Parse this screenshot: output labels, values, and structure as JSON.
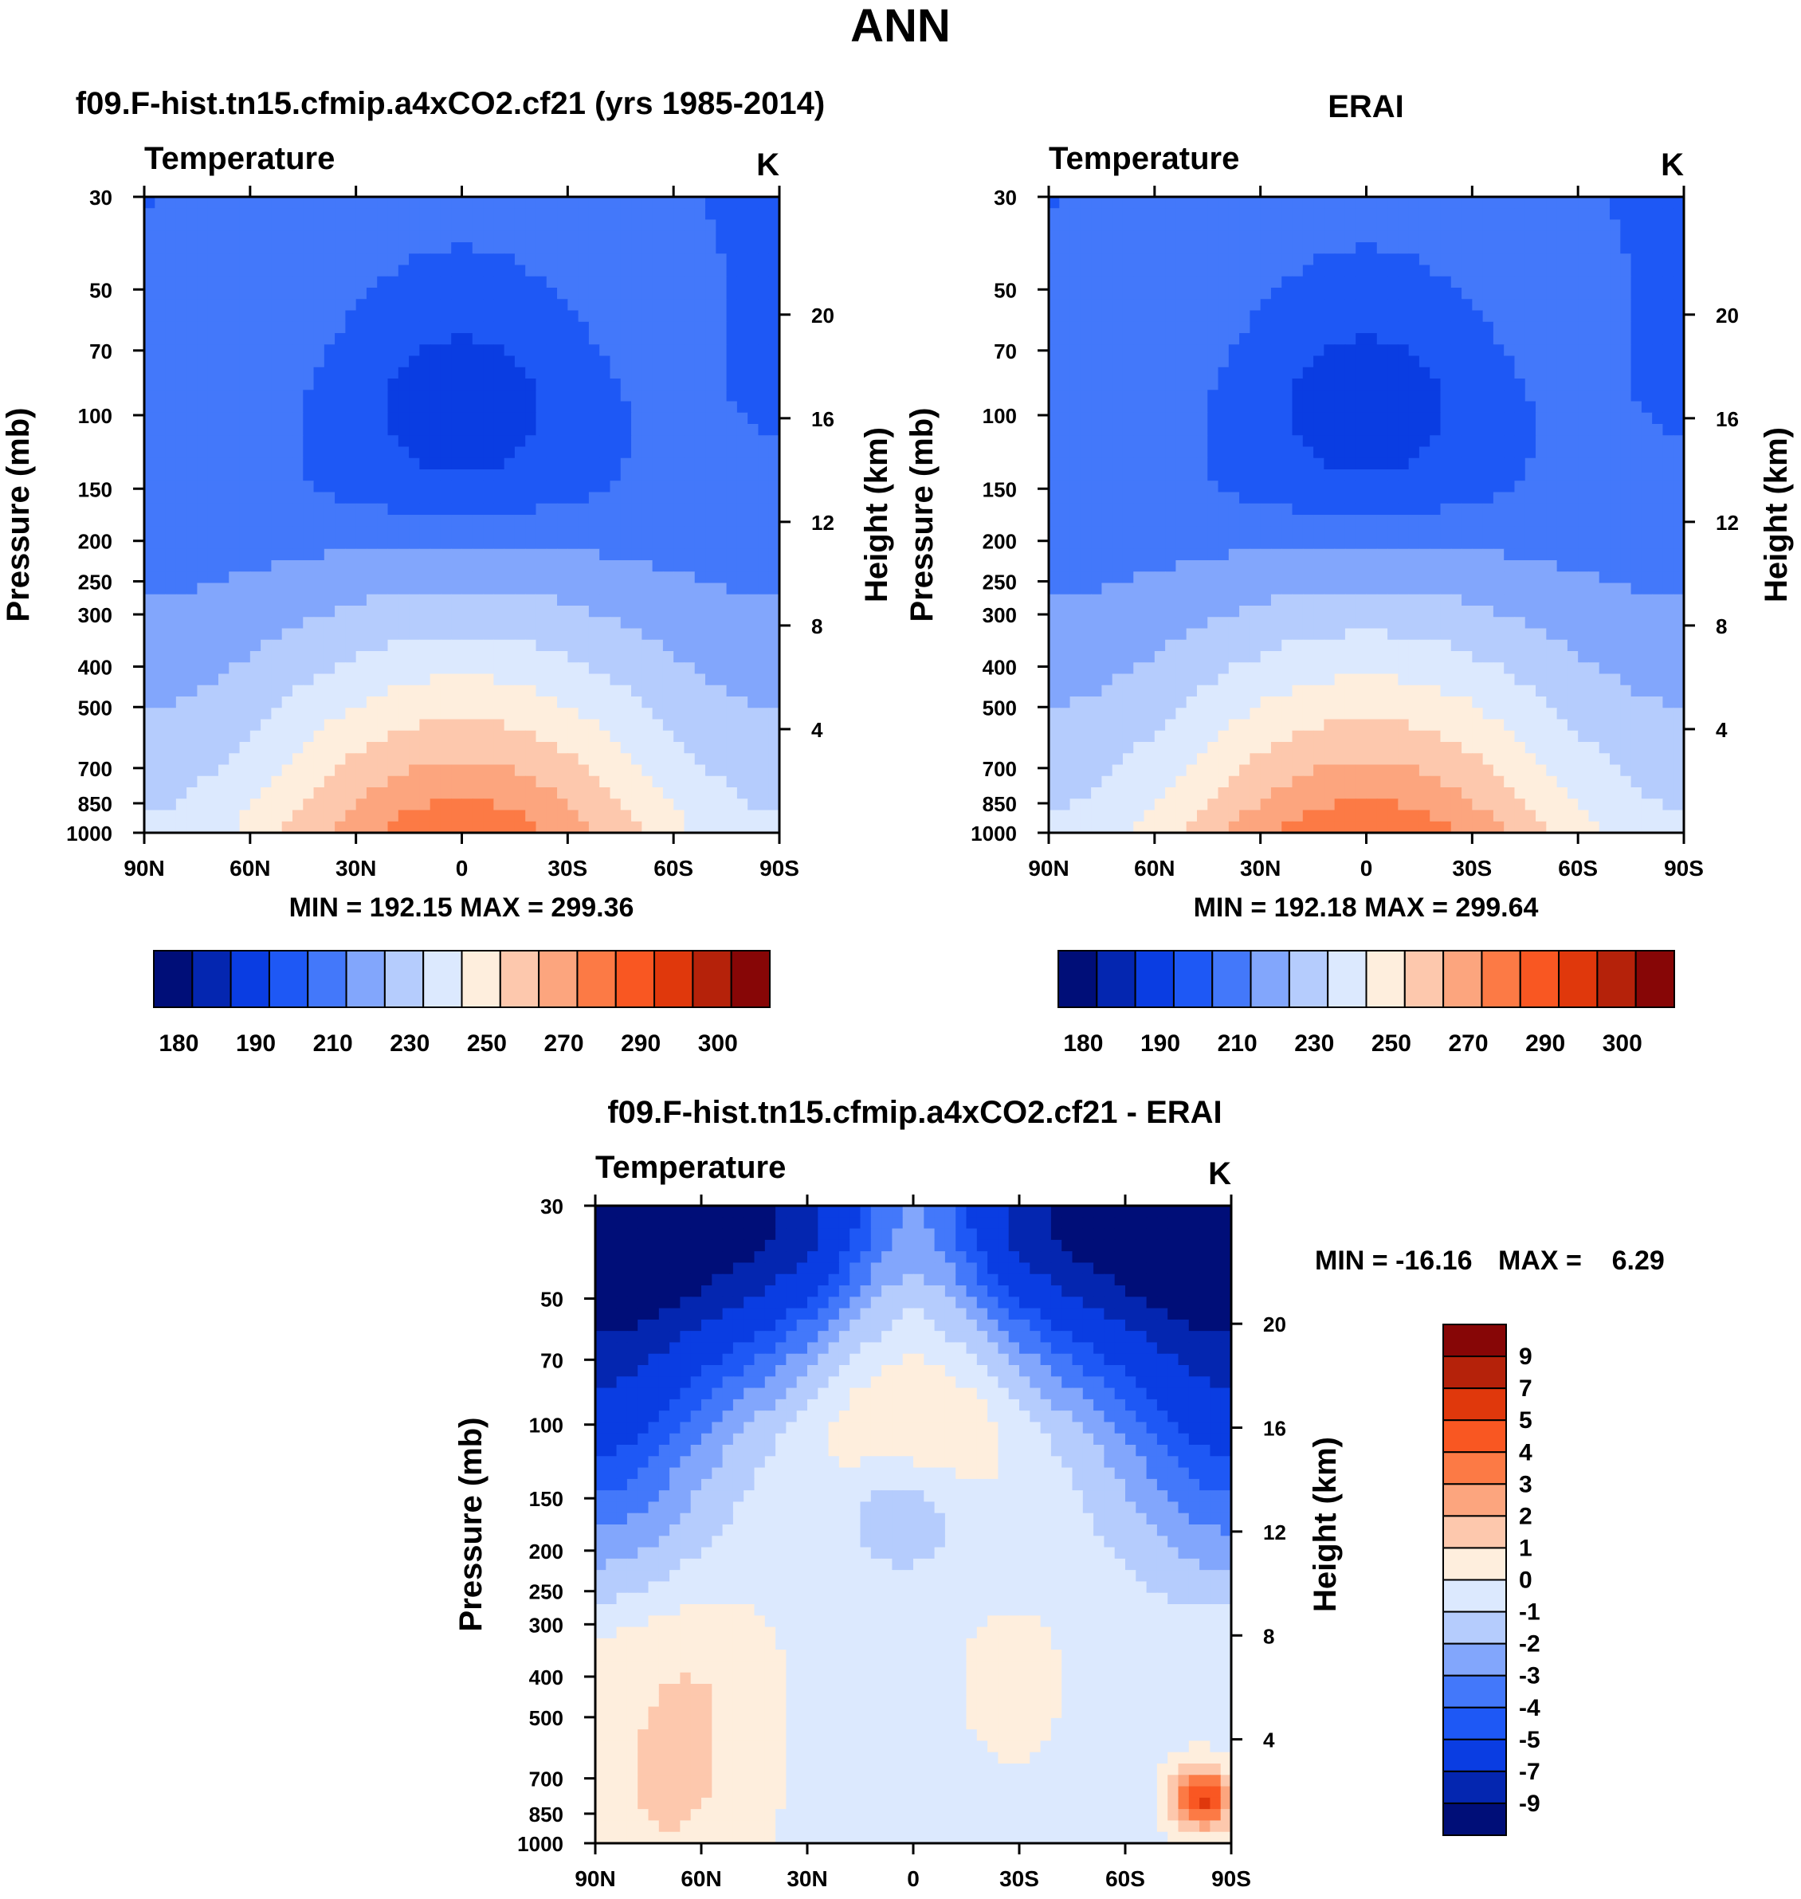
{
  "figure": {
    "title": "ANN"
  },
  "colors": {
    "absolute_palette": [
      "#000e78",
      "#0426b0",
      "#0a3de2",
      "#1e58f5",
      "#4378fa",
      "#82a6fc",
      "#b5ccfd",
      "#dce9fe",
      "#feeedd",
      "#fdc8ad",
      "#fca57e",
      "#fc7a45",
      "#f95722",
      "#e0380c",
      "#b5220a",
      "#870606"
    ],
    "diff_palette": [
      "#000e78",
      "#0426b0",
      "#0a3de2",
      "#1e58f5",
      "#4378fa",
      "#82a6fc",
      "#b5ccfd",
      "#dce9fe",
      "#feeedd",
      "#fdc8ad",
      "#fca57e",
      "#fc7a45",
      "#f95722",
      "#e0380c",
      "#b5220a",
      "#870606"
    ]
  },
  "chart_data": [
    {
      "id": "model",
      "type": "heatmap",
      "title": "f09.F-hist.tn15.cfmip.a4xCO2.cf21 (yrs 1985-2014)",
      "left_label": "Temperature",
      "units": "K",
      "ylabel": "Pressure (mb)",
      "y2label": "Height (km)",
      "x_ticks": [
        "90N",
        "60N",
        "30N",
        "0",
        "30S",
        "60S",
        "90S"
      ],
      "y_ticks": [
        30,
        50,
        70,
        100,
        150,
        200,
        250,
        300,
        400,
        500,
        700,
        850,
        1000
      ],
      "y2_ticks": [
        4,
        8,
        12,
        16,
        20
      ],
      "x_range": [
        90,
        -90
      ],
      "y_range": [
        1000,
        30
      ],
      "stats": "MIN = 192.15  MAX = 299.36",
      "min": 192.15,
      "max": 299.36,
      "colorbar_labels": [
        "180",
        "190",
        "210",
        "230",
        "250",
        "270",
        "290",
        "300"
      ],
      "levels": [
        180,
        190,
        200,
        210,
        220,
        230,
        240,
        250,
        260,
        270,
        280,
        290,
        295,
        300,
        305
      ],
      "model_offset": 0
    },
    {
      "id": "obs",
      "type": "heatmap",
      "title": "ERAI",
      "left_label": "Temperature",
      "units": "K",
      "ylabel": "Pressure (mb)",
      "y2label": "Height (km)",
      "x_ticks": [
        "90N",
        "60N",
        "30N",
        "0",
        "30S",
        "60S",
        "90S"
      ],
      "y_ticks": [
        30,
        50,
        70,
        100,
        150,
        200,
        250,
        300,
        400,
        500,
        700,
        850,
        1000
      ],
      "y2_ticks": [
        4,
        8,
        12,
        16,
        20
      ],
      "x_range": [
        90,
        -90
      ],
      "y_range": [
        1000,
        30
      ],
      "stats": "MIN = 192.18  MAX = 299.64",
      "min": 192.18,
      "max": 299.64,
      "colorbar_labels": [
        "180",
        "190",
        "210",
        "230",
        "250",
        "270",
        "290",
        "300"
      ],
      "levels": [
        180,
        190,
        200,
        210,
        220,
        230,
        240,
        250,
        260,
        270,
        280,
        290,
        295,
        300,
        305
      ],
      "model_offset": 1
    },
    {
      "id": "diff",
      "type": "heatmap",
      "title": "f09.F-hist.tn15.cfmip.a4xCO2.cf21 - ERAI",
      "left_label": "Temperature",
      "units": "K",
      "ylabel": "Pressure (mb)",
      "y2label": "Height (km)",
      "x_ticks": [
        "90N",
        "60N",
        "30N",
        "0",
        "30S",
        "60S",
        "90S"
      ],
      "y_ticks": [
        30,
        50,
        70,
        100,
        150,
        200,
        250,
        300,
        400,
        500,
        700,
        850,
        1000
      ],
      "y2_ticks": [
        4,
        8,
        12,
        16,
        20
      ],
      "x_range": [
        90,
        -90
      ],
      "y_range": [
        1000,
        30
      ],
      "stats_min": "MIN = -16.16",
      "stats_max": "MAX =    6.29",
      "min": -16.16,
      "max": 6.29,
      "colorbar_labels": [
        "9",
        "7",
        "5",
        "4",
        "3",
        "2",
        "1",
        "0",
        "-1",
        "-2",
        "-3",
        "-4",
        "-5",
        "-7",
        "-9"
      ],
      "levels": [
        -9,
        -7,
        -5,
        -4,
        -3,
        -2,
        -1,
        0,
        1,
        2,
        3,
        4,
        5,
        7,
        9
      ]
    }
  ]
}
